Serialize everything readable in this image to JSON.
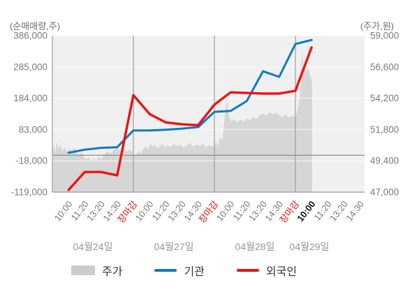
{
  "chart_data": {
    "type": "combo",
    "title": "",
    "volume_axis": {
      "unit": "(순매매량,주)",
      "min": -119000,
      "max": 386000,
      "ticks": [
        386000,
        285000,
        184000,
        83000,
        -18000,
        -119000
      ],
      "zero_line": 0
    },
    "price_axis": {
      "unit": "(주가,원)",
      "min": 47000,
      "max": 59000,
      "ticks": [
        59000,
        56600,
        54200,
        51800,
        49400,
        47000
      ]
    },
    "days": [
      {
        "date": "04월24일",
        "times": [
          "10:00",
          "11:20",
          "13:20",
          "14:30",
          "장마감"
        ]
      },
      {
        "date": "04월27일",
        "times": [
          "10:00",
          "11:20",
          "13:20",
          "14:30",
          "장마감"
        ]
      },
      {
        "date": "04월28일",
        "times": [
          "10:00",
          "11:20",
          "13:20",
          "14:30",
          "장마감"
        ]
      },
      {
        "date": "04월29일",
        "times": [
          "10:00",
          "11:20",
          "13:20",
          "14:30"
        ]
      }
    ],
    "close_label": "장마감",
    "current_time": {
      "day_index": 3,
      "time_index": 0,
      "label": "10:00"
    },
    "series": {
      "price_area": {
        "name": "주가",
        "axis": "price",
        "color": "#d6d6d6",
        "points": [
          [
            0,
            50200
          ],
          [
            0.08,
            50650
          ],
          [
            0.18,
            50050
          ],
          [
            0.28,
            50900
          ],
          [
            0.38,
            50300
          ],
          [
            0.5,
            50650
          ],
          [
            0.62,
            50150
          ],
          [
            0.75,
            50400
          ],
          [
            0.9,
            50050
          ],
          [
            1.05,
            50350
          ],
          [
            1.2,
            50150
          ],
          [
            1.35,
            50450
          ],
          [
            1.5,
            50000
          ],
          [
            1.65,
            49850
          ],
          [
            1.8,
            50100
          ],
          [
            1.95,
            49700
          ],
          [
            2.1,
            49500
          ],
          [
            2.25,
            49700
          ],
          [
            2.4,
            49380
          ],
          [
            2.55,
            49600
          ],
          [
            2.7,
            49350
          ],
          [
            2.85,
            49750
          ],
          [
            3.0,
            49500
          ],
          [
            3.2,
            49900
          ],
          [
            3.4,
            50150
          ],
          [
            3.6,
            49950
          ],
          [
            3.8,
            50250
          ],
          [
            4.0,
            50400
          ],
          [
            4.2,
            50150
          ],
          [
            4.4,
            50300
          ],
          [
            4.6,
            50100
          ],
          [
            4.8,
            50300
          ],
          [
            5.0,
            49900
          ],
          [
            5.15,
            49850
          ],
          [
            5.3,
            50100
          ],
          [
            5.45,
            49950
          ],
          [
            5.6,
            50250
          ],
          [
            5.75,
            50550
          ],
          [
            5.9,
            50300
          ],
          [
            6.05,
            50700
          ],
          [
            6.2,
            50450
          ],
          [
            6.35,
            50600
          ],
          [
            6.5,
            50350
          ],
          [
            6.65,
            50550
          ],
          [
            6.8,
            50700
          ],
          [
            6.95,
            50400
          ],
          [
            7.1,
            50600
          ],
          [
            7.3,
            50450
          ],
          [
            7.5,
            50700
          ],
          [
            7.7,
            50500
          ],
          [
            7.9,
            50650
          ],
          [
            8.1,
            50400
          ],
          [
            8.3,
            50600
          ],
          [
            8.5,
            50750
          ],
          [
            8.7,
            50500
          ],
          [
            8.9,
            50650
          ],
          [
            9.1,
            50550
          ],
          [
            9.3,
            50700
          ],
          [
            9.5,
            50450
          ],
          [
            9.7,
            50600
          ],
          [
            9.85,
            50500
          ],
          [
            10,
            50550
          ],
          [
            10.1,
            50900
          ],
          [
            10.2,
            50500
          ],
          [
            10.35,
            51200
          ],
          [
            10.5,
            51000
          ],
          [
            10.65,
            53000
          ],
          [
            10.78,
            54100
          ],
          [
            10.9,
            52800
          ],
          [
            11.05,
            52400
          ],
          [
            11.2,
            52600
          ],
          [
            11.4,
            52350
          ],
          [
            11.6,
            52550
          ],
          [
            11.8,
            52400
          ],
          [
            12,
            52650
          ],
          [
            12.2,
            52500
          ],
          [
            12.4,
            52800
          ],
          [
            12.6,
            52600
          ],
          [
            12.8,
            52900
          ],
          [
            13,
            53050
          ],
          [
            13.2,
            52850
          ],
          [
            13.4,
            53150
          ],
          [
            13.6,
            52950
          ],
          [
            13.8,
            53100
          ],
          [
            14,
            52900
          ],
          [
            14.2,
            52750
          ],
          [
            14.4,
            52950
          ],
          [
            14.6,
            52700
          ],
          [
            14.8,
            52850
          ],
          [
            15,
            52750
          ],
          [
            15.1,
            53100
          ],
          [
            15.2,
            53600
          ],
          [
            15.3,
            54600
          ],
          [
            15.42,
            58000
          ],
          [
            15.5,
            56200
          ],
          [
            15.6,
            56600
          ],
          [
            15.7,
            56250
          ],
          [
            15.8,
            56500
          ],
          [
            15.9,
            56000
          ],
          [
            16,
            55600
          ],
          [
            16.03,
            55500
          ]
        ]
      },
      "institutions": {
        "name": "기관",
        "axis": "volume",
        "color": "#0e7ac0",
        "values": [
          8000,
          18000,
          24000,
          26000,
          80000,
          80000,
          82000,
          86000,
          91000,
          140000,
          143000,
          175000,
          271000,
          253000,
          359000,
          372000
        ]
      },
      "foreigners": {
        "name": "외국인",
        "axis": "volume",
        "color": "#ee1212",
        "values": [
          -112000,
          -54000,
          -54000,
          -65000,
          194000,
          133000,
          106000,
          100000,
          97000,
          163000,
          203000,
          201000,
          199000,
          199000,
          208000,
          348000
        ]
      }
    },
    "colors": {
      "plot_background": "#f0f0f0",
      "gridline": "#ffffff",
      "zero_line": "#8c8c8c",
      "day_separator": "#9c9c9c",
      "axis_line": "#9c9c9c",
      "tick_label": "#7b7b7b",
      "close_label": "#e01414",
      "current_label": "#111111",
      "date_label": "#959595"
    }
  },
  "legend": [
    {
      "label": "주가",
      "type": "area",
      "color": "#cccccc"
    },
    {
      "label": "기관",
      "type": "line",
      "color": "#0e7ac0"
    },
    {
      "label": "외국인",
      "type": "line",
      "color": "#ee1212"
    }
  ]
}
